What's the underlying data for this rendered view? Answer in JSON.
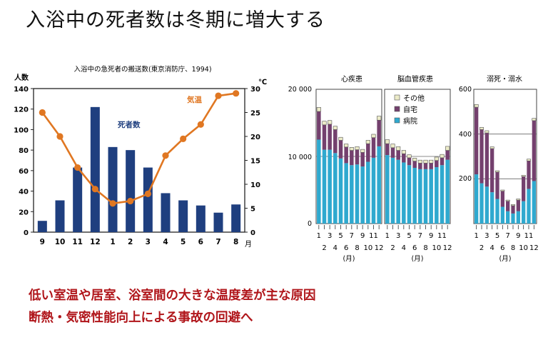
{
  "slide": {
    "title": "入浴中の死者数は冬期に増大する",
    "conclusion_1": "低い室温や居室、浴室間の大きな温度差が主な原因",
    "conclusion_2": "断熱・気密性能向上による事故の回避へ"
  },
  "colors": {
    "bar_blue": "#1f3f7f",
    "temp_orange": "#e07722",
    "stack_hospital": "#2fa9cf",
    "stack_home": "#74406e",
    "stack_other": "#ecebc8",
    "text_red": "#b0151a"
  },
  "chart_data": [
    {
      "type": "bar",
      "title": "入浴中の急死者の搬送数(東京消防庁、1994)",
      "ylabel_left": "人数",
      "ylabel_right": "℃",
      "xunit": "月",
      "categories": [
        "9",
        "10",
        "11",
        "12",
        "1",
        "2",
        "3",
        "4",
        "5",
        "6",
        "7",
        "8"
      ],
      "ylim_left": [
        0,
        140
      ],
      "ylim_right": [
        0,
        30
      ],
      "yticks_left": [
        0,
        20,
        40,
        60,
        80,
        100,
        120,
        140
      ],
      "yticks_right": [
        0,
        5,
        10,
        15,
        20,
        25,
        30
      ],
      "series": [
        {
          "name": "死者数",
          "type": "bar",
          "axis": "left",
          "values": [
            11,
            31,
            63,
            122,
            83,
            80,
            63,
            38,
            31,
            26,
            19,
            27
          ]
        },
        {
          "name": "気温",
          "type": "line",
          "axis": "right",
          "values": [
            25,
            20,
            13.5,
            9,
            6,
            6.5,
            8,
            16,
            19.5,
            22.5,
            28.5,
            29
          ]
        }
      ]
    },
    {
      "type": "bar",
      "stacked": true,
      "title": "心疾患",
      "categories": [
        "1",
        "2",
        "3",
        "4",
        "5",
        "6",
        "7",
        "8",
        "9",
        "10",
        "11",
        "12"
      ],
      "ylim": [
        0,
        20000
      ],
      "yticks": [
        "0",
        "10 000",
        "20 000"
      ],
      "series": [
        {
          "name": "病院",
          "values": [
            12500,
            11000,
            11000,
            10500,
            9700,
            9000,
            8700,
            8800,
            8500,
            9200,
            9800,
            11500
          ]
        },
        {
          "name": "自宅",
          "values": [
            4200,
            3700,
            3800,
            3500,
            2700,
            2400,
            2200,
            2200,
            2100,
            2700,
            3000,
            3900
          ]
        },
        {
          "name": "その他",
          "values": [
            600,
            550,
            550,
            500,
            450,
            450,
            450,
            450,
            450,
            500,
            500,
            600
          ]
        }
      ]
    },
    {
      "type": "bar",
      "stacked": true,
      "title": "脳血管疾患",
      "categories": [
        "1",
        "2",
        "3",
        "4",
        "5",
        "6",
        "7",
        "8",
        "9",
        "10",
        "11",
        "12"
      ],
      "ylim": [
        0,
        20000
      ],
      "legend": [
        "その他",
        "自宅",
        "病院"
      ],
      "series": [
        {
          "name": "病院",
          "values": [
            10200,
            9800,
            9500,
            9100,
            8700,
            8300,
            8100,
            8100,
            8100,
            8400,
            8700,
            9500
          ]
        },
        {
          "name": "自宅",
          "values": [
            1700,
            1500,
            1400,
            1300,
            1100,
            1000,
            900,
            900,
            900,
            1000,
            1100,
            1400
          ]
        },
        {
          "name": "その他",
          "values": [
            600,
            550,
            550,
            500,
            450,
            450,
            450,
            450,
            450,
            500,
            500,
            600
          ]
        }
      ]
    },
    {
      "type": "bar",
      "stacked": true,
      "title": "溺死・溺水",
      "categories": [
        "1",
        "2",
        "3",
        "4",
        "5",
        "6",
        "7",
        "8",
        "9",
        "10",
        "11",
        "12"
      ],
      "ylim": [
        0,
        600
      ],
      "yticks": [
        "200",
        "400",
        "600"
      ],
      "series": [
        {
          "name": "病院",
          "values": [
            220,
            180,
            165,
            140,
            110,
            75,
            55,
            45,
            55,
            100,
            155,
            190
          ]
        },
        {
          "name": "自宅",
          "values": [
            300,
            240,
            240,
            195,
            120,
            70,
            45,
            35,
            50,
            110,
            125,
            270
          ]
        },
        {
          "name": "その他",
          "values": [
            12,
            10,
            10,
            8,
            6,
            5,
            5,
            5,
            5,
            6,
            8,
            10
          ]
        }
      ]
    }
  ]
}
